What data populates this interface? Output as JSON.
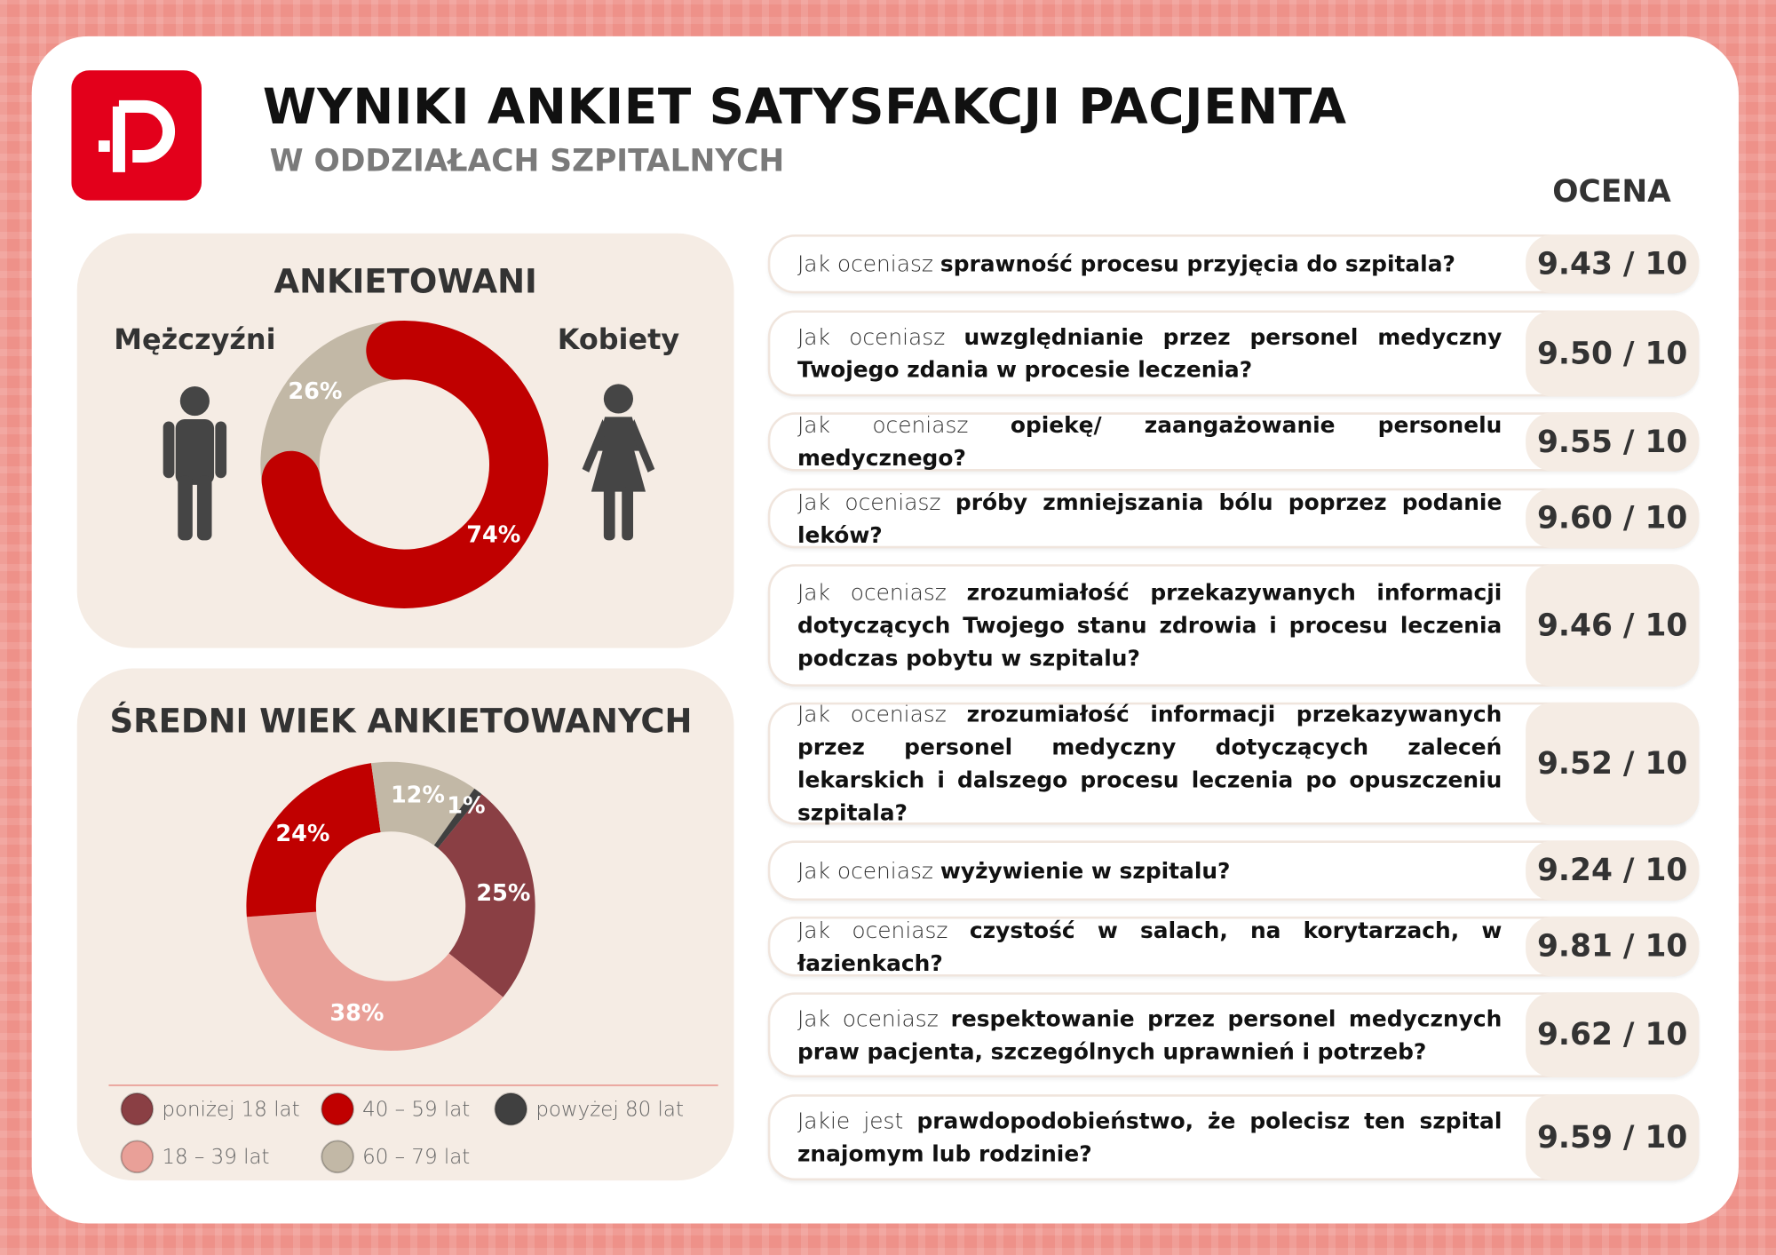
{
  "header": {
    "title": "WYNIKI ANKIET SATYSFAKCJI PACJENTA",
    "subtitle": "W ODDZIAŁACH SZPITALNYCH"
  },
  "chart_data": [
    {
      "type": "donut",
      "title": "ANKIETOWANI",
      "categories": [
        "Mężczyźni",
        "Kobiety"
      ],
      "values": [
        26,
        74
      ],
      "value_labels": [
        "26%",
        "74%"
      ],
      "colors": [
        "#c2b8a6",
        "#c00000"
      ]
    },
    {
      "type": "donut",
      "title": "ŚREDNI WIEK ANKIETOWANYCH",
      "categories": [
        "poniżej 18 lat",
        "18 – 39 lat",
        "40 – 59 lat",
        "60 – 79 lat",
        "powyżej 80 lat"
      ],
      "values": [
        25,
        38,
        24,
        12,
        1
      ],
      "value_labels": [
        "25%",
        "38%",
        "24%",
        "12%",
        "1%"
      ],
      "colors": [
        "#8a3f44",
        "#e9a098",
        "#c00000",
        "#c2b8a6",
        "#404040"
      ],
      "legend": true
    }
  ],
  "ratings": {
    "header": "OCENA",
    "questions": [
      {
        "prefix": "Jak oceniasz",
        "bold": "sprawność procesu przyjęcia do szpitala?",
        "score": "9.43 / 10"
      },
      {
        "prefix": "Jak oceniasz",
        "bold": "uwzględnianie przez personel medyczny Twojego zdania w procesie leczenia?",
        "score": "9.50 / 10"
      },
      {
        "prefix": "Jak oceniasz",
        "bold": "opiekę/ zaangażowanie personelu medycznego?",
        "score": "9.55 / 10"
      },
      {
        "prefix": "Jak oceniasz",
        "bold": "próby zmniejszania bólu poprzez podanie leków?",
        "score": "9.60 / 10"
      },
      {
        "prefix": "Jak oceniasz",
        "bold": "zrozumiałość przekazywanych informacji dotyczących Twojego stanu zdrowia i procesu leczenia podczas pobytu w szpitalu?",
        "score": "9.46 / 10"
      },
      {
        "prefix": "Jak oceniasz",
        "bold": "zrozumiałość informacji przekazywanych przez personel medyczny dotyczących zaleceń lekarskich i dalszego procesu leczenia po opuszczeniu szpitala?",
        "score": "9.52 / 10"
      },
      {
        "prefix": "Jak oceniasz",
        "bold": "wyżywienie w szpitalu?",
        "score": "9.24 / 10"
      },
      {
        "prefix": "Jak oceniasz",
        "bold": "czystość w salach, na korytarzach, w łazienkach?",
        "score": "9.81 / 10"
      },
      {
        "prefix": "Jak oceniasz",
        "bold": "respektowanie przez personel medycznych praw pacjenta, szczególnych uprawnień i potrzeb?",
        "score": "9.62 / 10"
      },
      {
        "prefix": "Jakie jest",
        "bold": "prawdopodobieństwo, że polecisz ten szpital znajomym lub rodzinie?",
        "score": "9.59 / 10"
      }
    ]
  }
}
